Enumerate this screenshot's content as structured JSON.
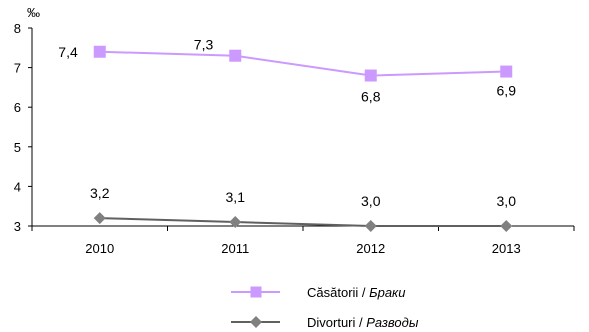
{
  "chart_data": {
    "type": "line",
    "unit_label": "‰",
    "categories": [
      "2010",
      "2011",
      "2012",
      "2013"
    ],
    "ylim": [
      3,
      8
    ],
    "yticks": [
      3,
      4,
      5,
      6,
      7,
      8
    ],
    "grid": false,
    "legend_position": "bottom-center",
    "series": [
      {
        "name_ro": "Căsătorii",
        "name_ru": "Браки",
        "values": [
          7.4,
          7.3,
          6.8,
          6.9
        ],
        "labels": [
          "7,4",
          "7,3",
          "6,8",
          "6,9"
        ],
        "color": "#CC99FF",
        "line_color": "#CC99FF",
        "marker": "square"
      },
      {
        "name_ro": "Divorturi",
        "name_ru": "Разводы",
        "values": [
          3.2,
          3.1,
          3.0,
          3.0
        ],
        "labels": [
          "3,2",
          "3,1",
          "3,0",
          "3,0"
        ],
        "color": "#808080",
        "line_color": "#606060",
        "marker": "diamond"
      }
    ]
  }
}
